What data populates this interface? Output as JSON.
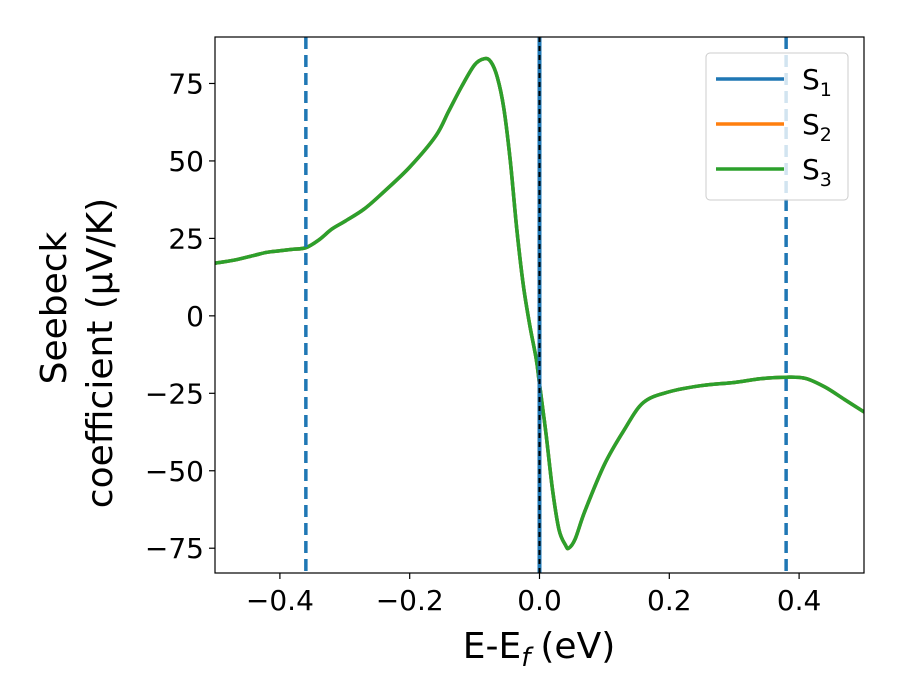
{
  "chart_data": {
    "type": "line",
    "xlabel": "E-E",
    "xlabel_sub": "f",
    "xlabel_unit": "(eV)",
    "ylabel_line1": "Seebeck",
    "ylabel_line2": "coefficient  (μV/K)",
    "xlim": [
      -0.5,
      0.5
    ],
    "ylim": [
      -83,
      90
    ],
    "xticks": [
      -0.4,
      -0.2,
      0.0,
      0.2,
      0.4
    ],
    "xtick_labels": [
      "−0.4",
      "−0.2",
      "0.0",
      "0.2",
      "0.4"
    ],
    "yticks": [
      75,
      50,
      25,
      0,
      -25,
      -50,
      -75
    ],
    "ytick_labels": [
      "75",
      "50",
      "25",
      "0",
      "−25",
      "−50",
      "−75"
    ],
    "grid": false,
    "legend_position": "top-right",
    "legend": [
      {
        "label": "S",
        "sub": "1",
        "color": "#1f77b4"
      },
      {
        "label": "S",
        "sub": "2",
        "color": "#ff7f0e"
      },
      {
        "label": "S",
        "sub": "3",
        "color": "#2ca02c"
      }
    ],
    "vertical_lines": [
      {
        "x": -0.36,
        "color": "#1f77b4",
        "style": "dashed"
      },
      {
        "x": 0.0,
        "color": "#1f77b4",
        "style": "solid"
      },
      {
        "x": 0.0,
        "color": "#000000",
        "style": "dashed"
      },
      {
        "x": 0.38,
        "color": "#1f77b4",
        "style": "dashed"
      }
    ],
    "series": [
      {
        "name": "S1",
        "color": "#1f77b4",
        "x": [
          -0.5,
          -0.47,
          -0.44,
          -0.42,
          -0.4,
          -0.38,
          -0.36,
          -0.34,
          -0.32,
          -0.3,
          -0.27,
          -0.24,
          -0.2,
          -0.16,
          -0.14,
          -0.12,
          -0.1,
          -0.085,
          -0.075,
          -0.065,
          -0.055,
          -0.045,
          -0.035,
          -0.025,
          -0.015,
          -0.005,
          0.0,
          0.01,
          0.02,
          0.03,
          0.04,
          0.045,
          0.055,
          0.07,
          0.1,
          0.13,
          0.16,
          0.2,
          0.25,
          0.3,
          0.34,
          0.38,
          0.41,
          0.44,
          0.47,
          0.5
        ],
        "y": [
          17,
          18,
          19.5,
          20.5,
          21,
          21.5,
          22,
          24.5,
          28,
          30.5,
          34.5,
          40,
          48,
          58,
          66,
          74,
          81,
          83,
          82,
          77,
          67,
          50,
          28,
          10,
          -3,
          -14,
          -22,
          -38,
          -56,
          -69,
          -74,
          -75,
          -72,
          -63,
          -48,
          -37,
          -28,
          -24.5,
          -22.5,
          -21.5,
          -20.3,
          -19.8,
          -20.2,
          -23,
          -27,
          -31
        ],
        "yscale_note": ""
      },
      {
        "name": "S2",
        "color": "#ff7f0e",
        "x": [
          -0.5,
          -0.47,
          -0.44,
          -0.42,
          -0.4,
          -0.38,
          -0.36,
          -0.34,
          -0.32,
          -0.3,
          -0.27,
          -0.24,
          -0.2,
          -0.16,
          -0.14,
          -0.12,
          -0.1,
          -0.085,
          -0.075,
          -0.065,
          -0.055,
          -0.045,
          -0.035,
          -0.025,
          -0.015,
          -0.005,
          0.0,
          0.01,
          0.02,
          0.03,
          0.04,
          0.045,
          0.055,
          0.07,
          0.1,
          0.13,
          0.16,
          0.2,
          0.25,
          0.3,
          0.34,
          0.38,
          0.41,
          0.44,
          0.47,
          0.5
        ],
        "y": [
          17,
          18,
          19.5,
          20.5,
          21,
          21.5,
          22,
          24.5,
          28,
          30.5,
          34.5,
          40,
          48,
          58,
          66,
          74,
          81,
          83,
          82,
          77,
          67,
          50,
          28,
          10,
          -3,
          -14,
          -22,
          -38,
          -56,
          -69,
          -74,
          -75,
          -72,
          -63,
          -48,
          -37,
          -28,
          -24.5,
          -22.5,
          -21.5,
          -20.3,
          -19.8,
          -20.2,
          -23,
          -27,
          -31
        ],
        "yscale_note": ""
      },
      {
        "name": "S3",
        "color": "#2ca02c",
        "x": [
          -0.5,
          -0.47,
          -0.44,
          -0.42,
          -0.4,
          -0.38,
          -0.36,
          -0.34,
          -0.32,
          -0.3,
          -0.27,
          -0.24,
          -0.2,
          -0.16,
          -0.14,
          -0.12,
          -0.1,
          -0.085,
          -0.075,
          -0.065,
          -0.055,
          -0.045,
          -0.035,
          -0.025,
          -0.015,
          -0.005,
          0.0,
          0.01,
          0.02,
          0.03,
          0.04,
          0.045,
          0.055,
          0.07,
          0.1,
          0.13,
          0.16,
          0.2,
          0.25,
          0.3,
          0.34,
          0.38,
          0.41,
          0.44,
          0.47,
          0.5
        ],
        "y": [
          17,
          18,
          19.5,
          20.5,
          21,
          21.5,
          22,
          24.5,
          28,
          30.5,
          34.5,
          40,
          48,
          58,
          66,
          74,
          81,
          83,
          82,
          77,
          67,
          50,
          28,
          10,
          -3,
          -14,
          -22,
          -38,
          -56,
          -69,
          -74,
          -75,
          -72,
          -63,
          -48,
          -37,
          -28,
          -24.5,
          -22.5,
          -21.5,
          -20.3,
          -19.8,
          -20.2,
          -23,
          -27,
          -31
        ],
        "yscale_note": ""
      }
    ]
  }
}
